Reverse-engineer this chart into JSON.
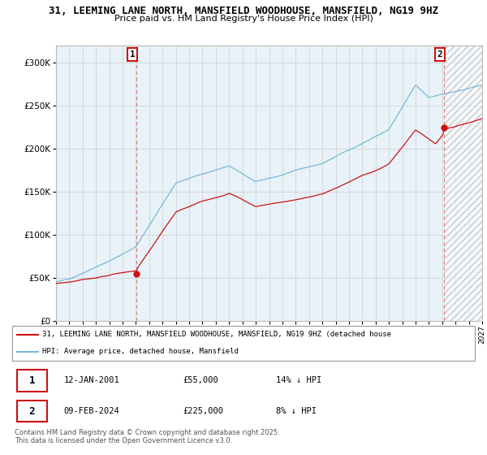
{
  "title_line1": "31, LEEMING LANE NORTH, MANSFIELD WOODHOUSE, MANSFIELD, NG19 9HZ",
  "title_line2": "Price paid vs. HM Land Registry's House Price Index (HPI)",
  "ylim": [
    0,
    320000
  ],
  "yticks": [
    0,
    50000,
    100000,
    150000,
    200000,
    250000,
    300000
  ],
  "ytick_labels": [
    "£0",
    "£50K",
    "£100K",
    "£150K",
    "£200K",
    "£250K",
    "£300K"
  ],
  "x_start_year": 1995,
  "x_end_year": 2027,
  "sale1_date": 2001.04,
  "sale1_price": 55000,
  "sale1_label": "1",
  "sale2_date": 2024.12,
  "sale2_price": 225000,
  "sale2_label": "2",
  "legend_line1": "31, LEEMING LANE NORTH, MANSFIELD WOODHOUSE, MANSFIELD, NG19 9HZ (detached house",
  "legend_line2": "HPI: Average price, detached house, Mansfield",
  "table_row1": [
    "1",
    "12-JAN-2001",
    "£55,000",
    "14% ↓ HPI"
  ],
  "table_row2": [
    "2",
    "09-FEB-2024",
    "£225,000",
    "8% ↓ HPI"
  ],
  "footer": "Contains HM Land Registry data © Crown copyright and database right 2025.\nThis data is licensed under the Open Government Licence v3.0.",
  "line_color_hpi": "#7ab8d9",
  "line_color_price": "#cc1111",
  "vline_color": "#e08080",
  "bg_chart": "#e8f2f8",
  "background_color": "#ffffff",
  "grid_color": "#cccccc"
}
